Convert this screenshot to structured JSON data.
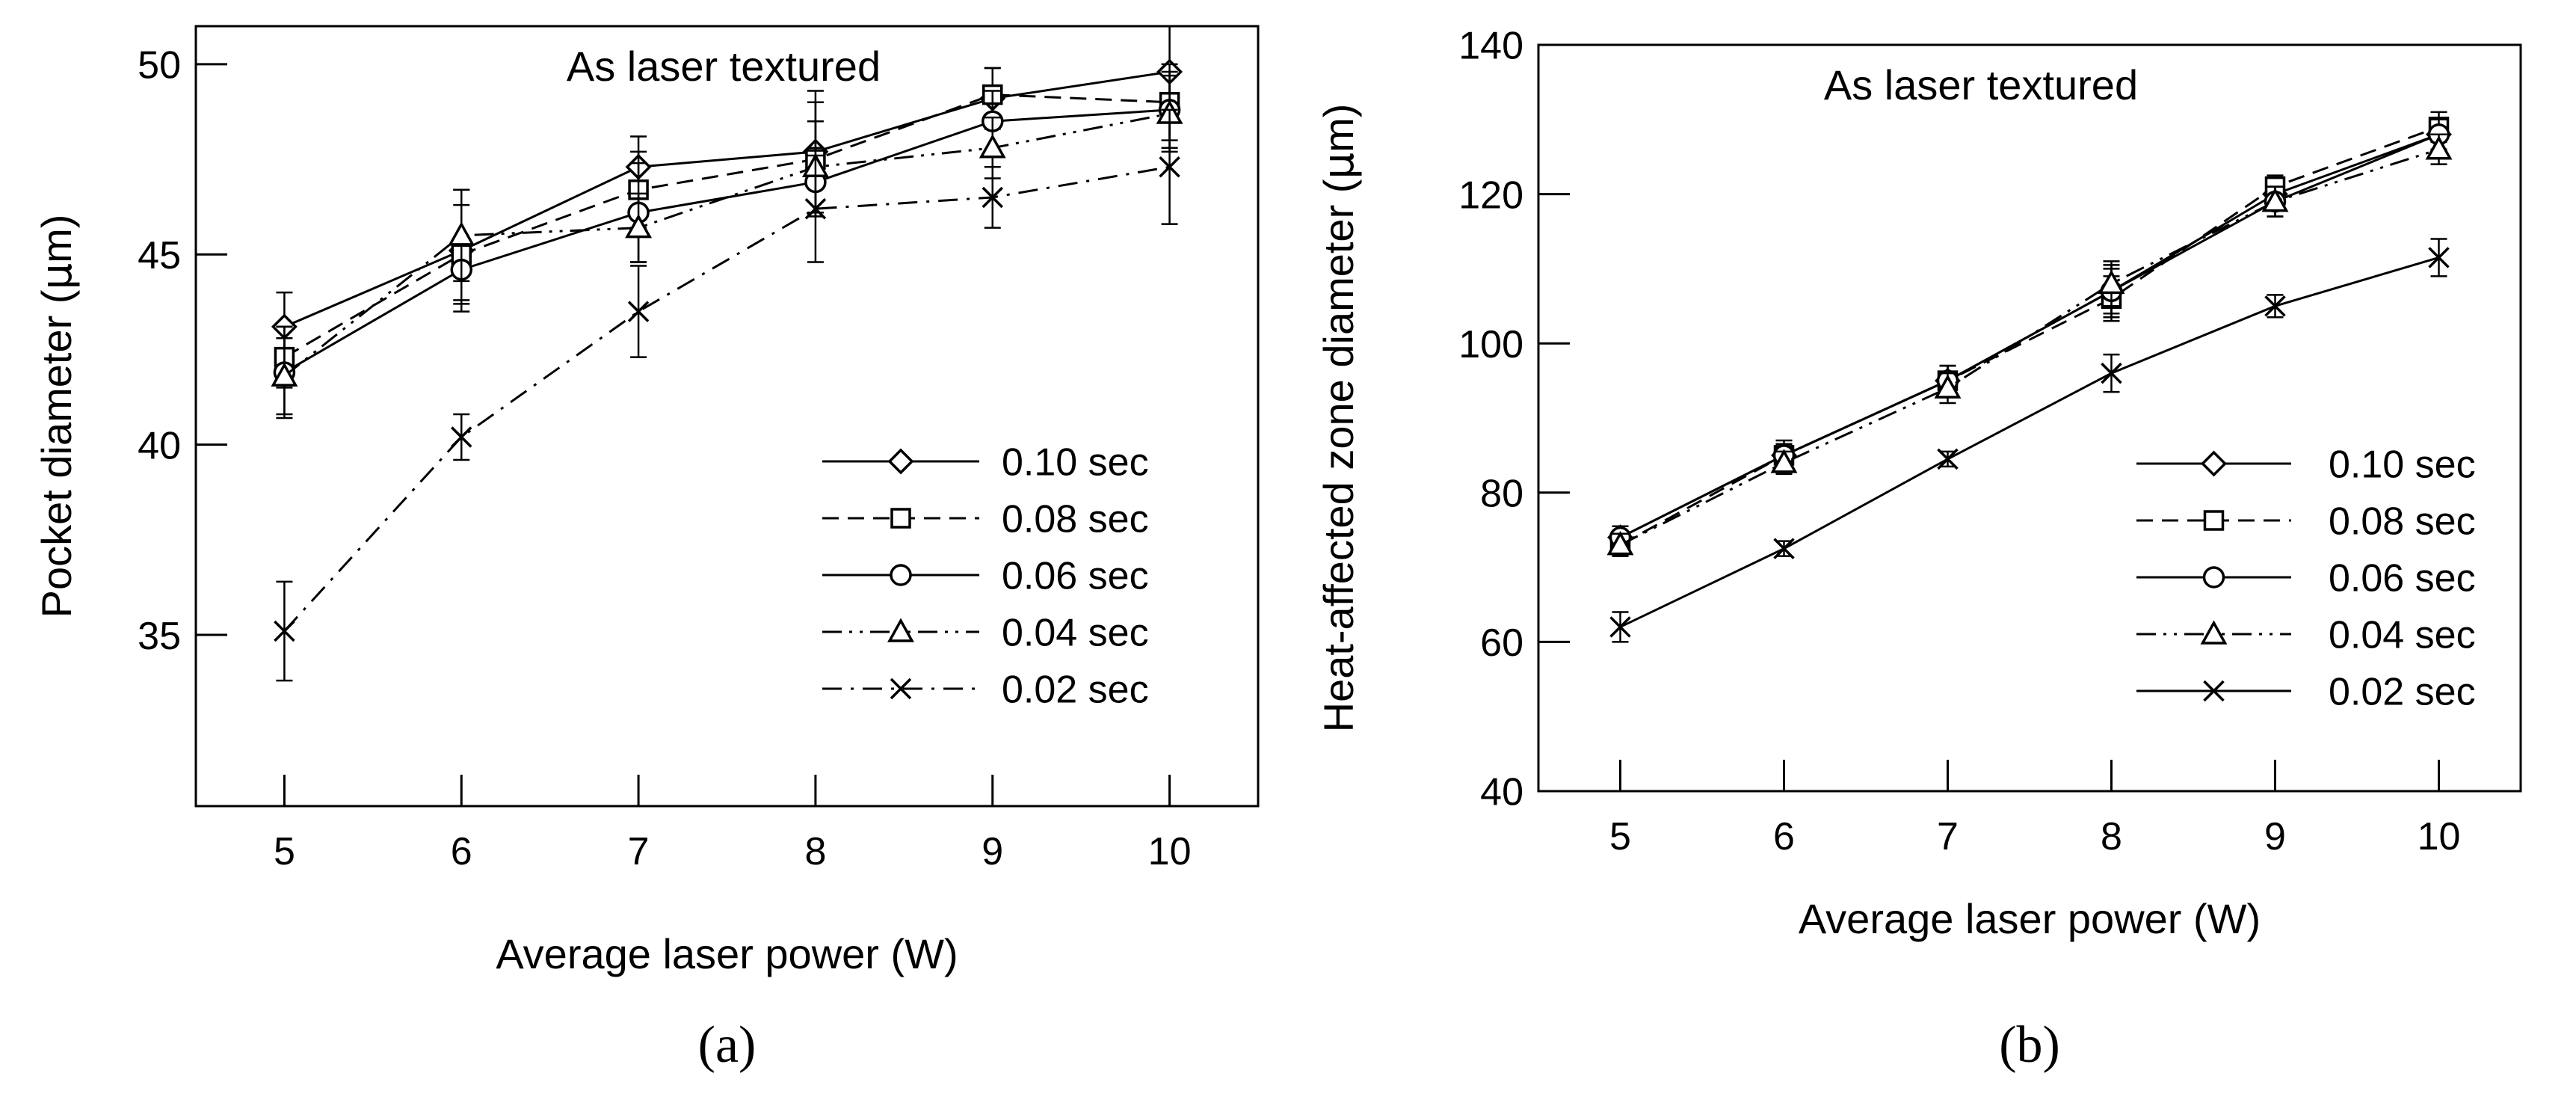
{
  "chart_data": [
    {
      "type": "line",
      "panel_label": "(a)",
      "annotation": "As laser textured",
      "xlabel": "Average laser power (W)",
      "ylabel_prefix": "Pocket diameter (",
      "ylabel_unit": "μ",
      "ylabel_suffix": "m)",
      "x": [
        5,
        6,
        7,
        8,
        9,
        10
      ],
      "xlim": [
        4.5,
        10.5
      ],
      "ylim": [
        30.5,
        51
      ],
      "xticks": [
        5,
        6,
        7,
        8,
        9,
        10
      ],
      "yticks": [
        35,
        40,
        45,
        50
      ],
      "legend_position": "bottom-right",
      "series": [
        {
          "name": "0.10 sec",
          "marker": "diamond",
          "dash": "solid",
          "values": [
            43.1,
            45.1,
            47.3,
            47.7,
            49.1,
            49.8
          ],
          "errors": [
            0.9,
            1.6,
            0.8,
            1.6,
            0.8,
            1.2
          ]
        },
        {
          "name": "0.08 sec",
          "marker": "square",
          "dash": "dashed",
          "values": [
            42.3,
            45.0,
            46.7,
            47.5,
            49.2,
            49.0
          ],
          "errors": [
            0.8,
            1.3,
            1.0,
            1.5,
            0.7,
            1.0
          ]
        },
        {
          "name": "0.06 sec",
          "marker": "circle",
          "dash": "solid",
          "values": [
            41.9,
            44.6,
            46.1,
            46.9,
            48.5,
            48.8
          ],
          "errors": [
            1.2,
            0.8,
            1.3,
            0.9,
            0.8,
            1.0
          ]
        },
        {
          "name": "0.04 sec",
          "marker": "triangle",
          "dash": "dashdotdot",
          "values": [
            41.8,
            45.5,
            45.7,
            47.3,
            47.8,
            48.7
          ],
          "errors": [
            1.0,
            1.2,
            0.9,
            1.2,
            0.8,
            1.0
          ]
        },
        {
          "name": "0.02 sec",
          "marker": "x",
          "dash": "dashdot",
          "values": [
            35.1,
            40.2,
            43.5,
            46.2,
            46.5,
            47.3
          ],
          "errors": [
            1.3,
            0.6,
            1.2,
            1.4,
            0.8,
            1.5
          ]
        }
      ]
    },
    {
      "type": "line",
      "panel_label": "(b)",
      "annotation": "As laser textured",
      "xlabel": "Average laser power (W)",
      "ylabel_prefix": "Heat-affected zone diameter (",
      "ylabel_unit": "μ",
      "ylabel_suffix": "m)",
      "x": [
        5,
        6,
        7,
        8,
        9,
        10
      ],
      "xlim": [
        4.5,
        10.5
      ],
      "ylim": [
        40,
        140
      ],
      "xticks": [
        5,
        6,
        7,
        8,
        9,
        10
      ],
      "yticks": [
        40,
        60,
        80,
        100,
        120,
        140
      ],
      "legend_position": "bottom-right",
      "series": [
        {
          "name": "0.10 sec",
          "marker": "diamond",
          "dash": "solid",
          "values": [
            74,
            85,
            95,
            107,
            120,
            128
          ],
          "errors": [
            1.5,
            2.0,
            2.0,
            3.5,
            2.0,
            2.0
          ]
        },
        {
          "name": "0.08 sec",
          "marker": "square",
          "dash": "dashed",
          "values": [
            73,
            85,
            95,
            106,
            121,
            129
          ],
          "errors": [
            1.5,
            1.5,
            2.0,
            3.0,
            1.5,
            2.0
          ]
        },
        {
          "name": "0.06 sec",
          "marker": "circle",
          "dash": "solid",
          "values": [
            74,
            85,
            95,
            107,
            119,
            128
          ],
          "errors": [
            1.5,
            1.5,
            2.0,
            3.0,
            2.0,
            2.0
          ]
        },
        {
          "name": "0.04 sec",
          "marker": "triangle",
          "dash": "dashdotdot",
          "values": [
            73,
            84,
            94,
            108,
            119,
            126
          ],
          "errors": [
            1.5,
            1.5,
            2.0,
            3.0,
            2.0,
            2.0
          ]
        },
        {
          "name": "0.02 sec",
          "marker": "x",
          "dash": "solid",
          "values": [
            62,
            72.5,
            84.5,
            96,
            105,
            111.5
          ],
          "errors": [
            2.0,
            1.0,
            1.0,
            2.5,
            1.5,
            2.5
          ]
        }
      ]
    }
  ]
}
